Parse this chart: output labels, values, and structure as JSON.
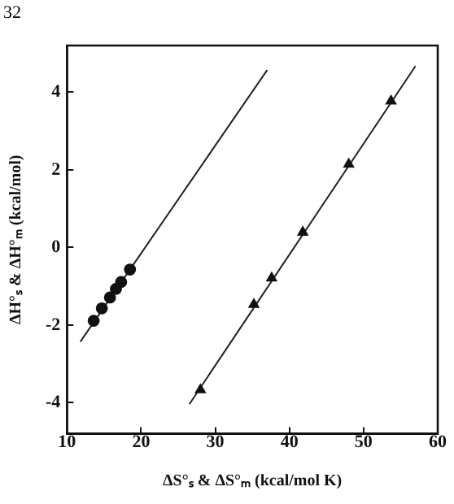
{
  "chart_data": {
    "type": "scatter",
    "xlabel": "ΔS°ₛ & ΔS°ₘ (kcal/mol K)",
    "ylabel": "ΔH°ₛ & ΔH°ₘ (kcal/mol)",
    "annotations": [
      "32"
    ],
    "xlim": [
      10,
      60
    ],
    "ylim": [
      -4.8,
      5.2
    ],
    "xticks": [
      10,
      20,
      30,
      40,
      50,
      60
    ],
    "yticks": [
      -4,
      -2,
      0,
      2,
      4
    ],
    "grid": false,
    "legend": false,
    "series": [
      {
        "type": "scatter",
        "marker": "circle",
        "color": "#111111",
        "x": [
          13.6,
          14.7,
          15.8,
          16.6,
          17.3,
          18.5
        ],
        "values": [
          -1.89,
          -1.57,
          -1.29,
          -1.07,
          -0.89,
          -0.57
        ]
      },
      {
        "type": "line",
        "marker": "none",
        "color": "#222222",
        "x": [
          11.8,
          37.0
        ],
        "values": [
          -2.43,
          4.57
        ]
      },
      {
        "type": "scatter",
        "marker": "triangle",
        "color": "#111111",
        "x": [
          28.0,
          35.2,
          37.6,
          41.8,
          48.0,
          53.7
        ],
        "values": [
          -3.67,
          -1.47,
          -0.79,
          0.39,
          2.14,
          3.77
        ]
      },
      {
        "type": "line",
        "marker": "none",
        "color": "#222222",
        "x": [
          26.5,
          57.0
        ],
        "values": [
          -4.04,
          4.67
        ]
      }
    ]
  }
}
